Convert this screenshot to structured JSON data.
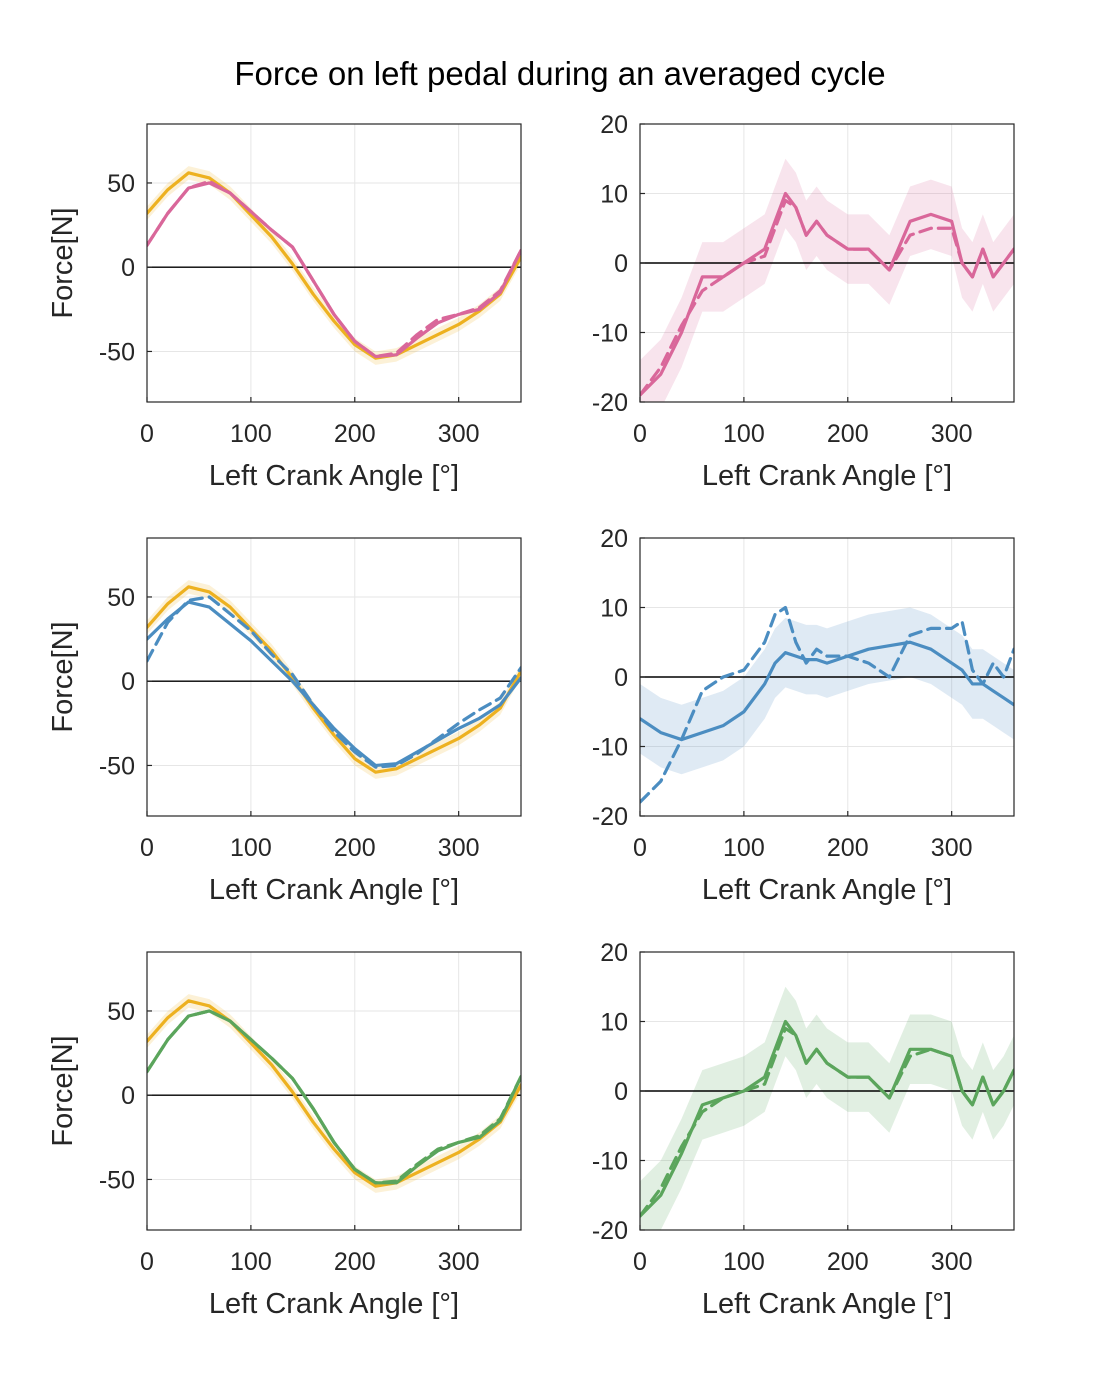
{
  "figure": {
    "title": "Force on left pedal during an averaged cycle"
  },
  "colors": {
    "reference": "#EDB120",
    "pink": "#D9679A",
    "blue": "#4B8DC1",
    "green": "#5BA55C",
    "zero_line": "#000000",
    "grid": "#E6E6E6",
    "axis": "#262626"
  },
  "chart_data": [
    {
      "type": "line",
      "row": 1,
      "col": 1,
      "xlabel": "Left Crank Angle [°]",
      "ylabel": "Force[N]",
      "xlim": [
        0,
        360
      ],
      "ylim": [
        -80,
        85
      ],
      "xticks": [
        0,
        100,
        200,
        300
      ],
      "yticks": [
        -50,
        0,
        50
      ],
      "band_color": "reference",
      "band_width": 4,
      "grid": true,
      "zero_line": true,
      "x": [
        0,
        20,
        40,
        60,
        80,
        100,
        120,
        140,
        160,
        180,
        200,
        220,
        240,
        260,
        280,
        300,
        320,
        340,
        360
      ],
      "series": [
        {
          "color": "reference",
          "style": "solid",
          "y": [
            32,
            46,
            56,
            53,
            44,
            31,
            18,
            2,
            -16,
            -32,
            -46,
            -54,
            -52,
            -46,
            -40,
            -34,
            -26,
            -16,
            6
          ],
          "band": 4
        },
        {
          "color": "pink",
          "style": "solid",
          "y": [
            13,
            32,
            47,
            50,
            44,
            33,
            22,
            12,
            -8,
            -28,
            -44,
            -53,
            -52,
            -42,
            -33,
            -28,
            -25,
            -15,
            10
          ]
        },
        {
          "color": "pink",
          "style": "dashed",
          "y": [
            13,
            32,
            47,
            51,
            44,
            33,
            22,
            12,
            -8,
            -28,
            -44,
            -53,
            -51,
            -40,
            -31,
            -28,
            -24,
            -14,
            10
          ]
        }
      ]
    },
    {
      "type": "line",
      "row": 1,
      "col": 2,
      "xlabel": "Left Crank Angle [°]",
      "ylabel": "",
      "xlim": [
        0,
        360
      ],
      "ylim": [
        -20,
        20
      ],
      "xticks": [
        0,
        100,
        200,
        300
      ],
      "yticks": [
        -20,
        -10,
        0,
        10,
        20
      ],
      "band_color": "pink",
      "band_width": 5,
      "grid": true,
      "zero_line": true,
      "x": [
        0,
        20,
        40,
        60,
        80,
        100,
        120,
        130,
        140,
        150,
        160,
        170,
        180,
        200,
        220,
        240,
        260,
        280,
        300,
        310,
        320,
        330,
        340,
        350,
        360
      ],
      "series": [
        {
          "color": "pink",
          "style": "solid",
          "y": [
            -19,
            -16,
            -10,
            -2,
            -2,
            0,
            2,
            6,
            10,
            8,
            4,
            6,
            4,
            2,
            2,
            -1,
            6,
            7,
            6,
            0,
            -2,
            2,
            -2,
            0,
            2
          ],
          "band": 5
        },
        {
          "color": "pink",
          "style": "dashed",
          "y": [
            -19,
            -15,
            -9,
            -4,
            -2,
            0,
            1,
            5,
            9,
            8,
            4,
            6,
            4,
            2,
            2,
            -1,
            4,
            5,
            5,
            0,
            -2,
            2,
            -2,
            0,
            2
          ]
        }
      ]
    },
    {
      "type": "line",
      "row": 2,
      "col": 1,
      "xlabel": "Left Crank Angle [°]",
      "ylabel": "Force[N]",
      "xlim": [
        0,
        360
      ],
      "ylim": [
        -80,
        85
      ],
      "xticks": [
        0,
        100,
        200,
        300
      ],
      "yticks": [
        -50,
        0,
        50
      ],
      "band_color": "reference",
      "band_width": 4,
      "grid": true,
      "zero_line": true,
      "x": [
        0,
        20,
        40,
        60,
        80,
        100,
        120,
        140,
        160,
        180,
        200,
        220,
        240,
        260,
        280,
        300,
        320,
        340,
        360
      ],
      "series": [
        {
          "color": "reference",
          "style": "solid",
          "y": [
            32,
            46,
            56,
            53,
            44,
            31,
            18,
            2,
            -16,
            -32,
            -46,
            -54,
            -52,
            -46,
            -40,
            -34,
            -26,
            -16,
            6
          ],
          "band": 4
        },
        {
          "color": "blue",
          "style": "solid",
          "y": [
            25,
            37,
            47,
            44,
            34,
            24,
            12,
            0,
            -14,
            -28,
            -40,
            -50,
            -49,
            -42,
            -35,
            -28,
            -22,
            -14,
            2
          ]
        },
        {
          "color": "blue",
          "style": "dashed",
          "y": [
            12,
            35,
            48,
            50,
            40,
            30,
            16,
            4,
            -14,
            -30,
            -42,
            -51,
            -50,
            -43,
            -34,
            -25,
            -17,
            -10,
            8
          ]
        }
      ]
    },
    {
      "type": "line",
      "row": 2,
      "col": 2,
      "xlabel": "Left Crank Angle [°]",
      "ylabel": "",
      "xlim": [
        0,
        360
      ],
      "ylim": [
        -20,
        20
      ],
      "xticks": [
        0,
        100,
        200,
        300
      ],
      "yticks": [
        -20,
        -10,
        0,
        10,
        20
      ],
      "band_color": "blue",
      "band_width": 5,
      "grid": true,
      "zero_line": true,
      "x": [
        0,
        20,
        40,
        60,
        80,
        100,
        120,
        130,
        140,
        150,
        160,
        170,
        180,
        200,
        220,
        240,
        260,
        280,
        300,
        310,
        320,
        330,
        340,
        350,
        360
      ],
      "series": [
        {
          "color": "blue",
          "style": "solid",
          "y": [
            -6,
            -8,
            -9,
            -8,
            -7,
            -5,
            -1,
            2,
            3.5,
            3,
            2.5,
            2.5,
            2,
            3,
            4,
            4.5,
            5,
            4,
            2,
            1,
            -1,
            -1,
            -2,
            -3,
            -4
          ],
          "band": 5
        },
        {
          "color": "blue",
          "style": "dashed",
          "y": [
            -18,
            -15,
            -9,
            -2,
            0,
            1,
            5,
            9,
            10,
            5,
            2,
            4,
            3,
            3,
            2,
            0,
            6,
            7,
            7,
            8,
            1,
            -1,
            2,
            0,
            4
          ]
        }
      ]
    },
    {
      "type": "line",
      "row": 3,
      "col": 1,
      "xlabel": "Left Crank Angle [°]",
      "ylabel": "Force[N]",
      "xlim": [
        0,
        360
      ],
      "ylim": [
        -80,
        85
      ],
      "xticks": [
        0,
        100,
        200,
        300
      ],
      "yticks": [
        -50,
        0,
        50
      ],
      "band_color": "reference",
      "band_width": 4,
      "grid": true,
      "zero_line": true,
      "x": [
        0,
        20,
        40,
        60,
        80,
        100,
        120,
        140,
        160,
        180,
        200,
        220,
        240,
        260,
        280,
        300,
        320,
        340,
        360
      ],
      "series": [
        {
          "color": "reference",
          "style": "solid",
          "y": [
            32,
            46,
            56,
            53,
            44,
            31,
            18,
            2,
            -16,
            -32,
            -46,
            -54,
            -52,
            -46,
            -40,
            -34,
            -26,
            -16,
            6
          ],
          "band": 4
        },
        {
          "color": "green",
          "style": "solid",
          "y": [
            14,
            33,
            47,
            50,
            44,
            33,
            22,
            10,
            -8,
            -28,
            -44,
            -52,
            -52,
            -42,
            -33,
            -28,
            -25,
            -15,
            11
          ]
        },
        {
          "color": "green",
          "style": "dashed",
          "y": [
            14,
            33,
            47,
            50,
            44,
            33,
            22,
            10,
            -8,
            -28,
            -44,
            -52,
            -51,
            -41,
            -32,
            -28,
            -24,
            -14,
            11
          ]
        }
      ]
    },
    {
      "type": "line",
      "row": 3,
      "col": 2,
      "xlabel": "Left Crank Angle [°]",
      "ylabel": "",
      "xlim": [
        0,
        360
      ],
      "ylim": [
        -20,
        20
      ],
      "xticks": [
        0,
        100,
        200,
        300
      ],
      "yticks": [
        -20,
        -10,
        0,
        10,
        20
      ],
      "band_color": "green",
      "band_width": 5,
      "grid": true,
      "zero_line": true,
      "x": [
        0,
        20,
        40,
        60,
        80,
        100,
        120,
        130,
        140,
        150,
        160,
        170,
        180,
        200,
        220,
        240,
        260,
        280,
        300,
        310,
        320,
        330,
        340,
        350,
        360
      ],
      "series": [
        {
          "color": "green",
          "style": "solid",
          "y": [
            -18,
            -15,
            -9,
            -2,
            -1,
            0,
            2,
            6,
            10,
            8,
            4,
            6,
            4,
            2,
            2,
            -1,
            6,
            6,
            5,
            0,
            -2,
            2,
            -2,
            0,
            3
          ],
          "band": 5
        },
        {
          "color": "green",
          "style": "dashed",
          "y": [
            -18,
            -14,
            -8,
            -3,
            -1,
            0,
            1,
            5,
            9,
            8,
            4,
            6,
            4,
            2,
            2,
            -1,
            5,
            6,
            5,
            0,
            -2,
            2,
            -2,
            0,
            3
          ]
        }
      ]
    }
  ]
}
